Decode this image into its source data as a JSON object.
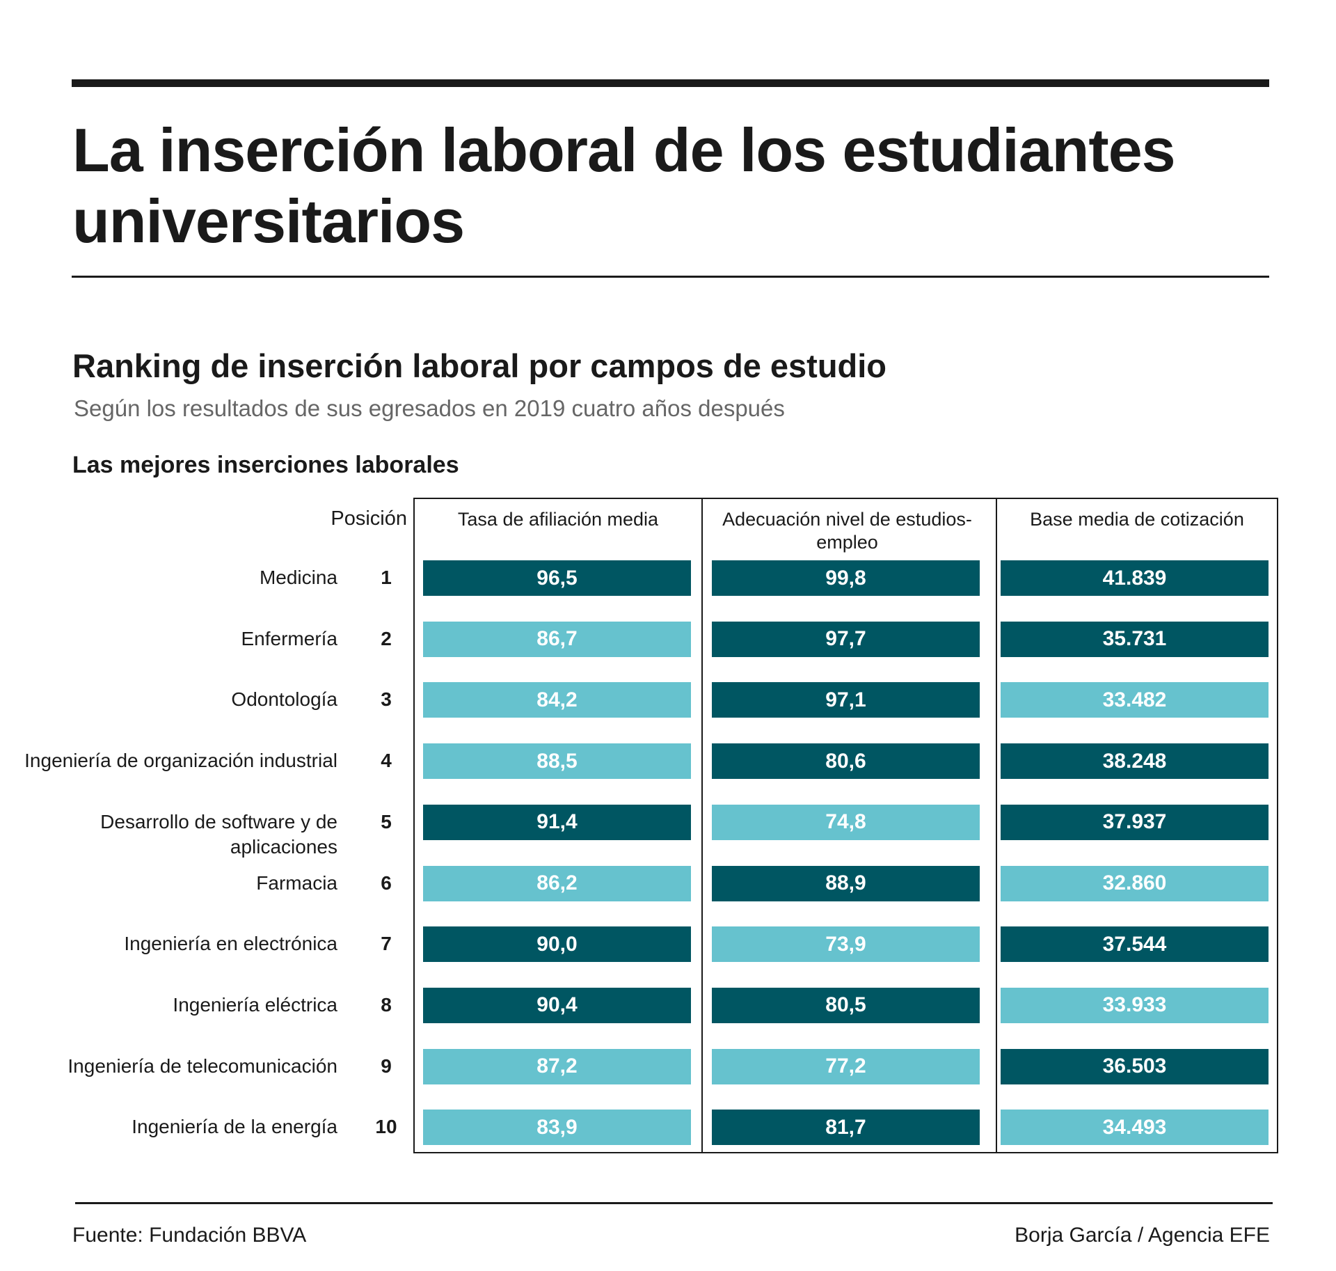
{
  "title": "La inserción laboral de los estudiantes universitarios",
  "subtitle": "Ranking de inserción laboral por campos de estudio",
  "dek": "Según los resultados de sus egresados en 2019 cuatro años después",
  "section_title": "Las mejores inserciones laborales",
  "footer": {
    "source": "Fuente: Fundación BBVA",
    "credit": "Borja García / Agencia EFE"
  },
  "colors": {
    "dark": "#005662",
    "light": "#66c2ce"
  },
  "chart_data": {
    "type": "table",
    "position_header": "Posición",
    "columns": [
      "Tasa de afiliación media",
      "Adecuación nivel de estudios-empleo",
      "Base media de cotización"
    ],
    "rows": [
      {
        "label": "Medicina",
        "position": "1",
        "values": [
          "96,5",
          "99,8",
          "41.839"
        ],
        "shade": [
          "dark",
          "dark",
          "dark"
        ]
      },
      {
        "label": "Enfermería",
        "position": "2",
        "values": [
          "86,7",
          "97,7",
          "35.731"
        ],
        "shade": [
          "light",
          "dark",
          "dark"
        ]
      },
      {
        "label": "Odontología",
        "position": "3",
        "values": [
          "84,2",
          "97,1",
          "33.482"
        ],
        "shade": [
          "light",
          "dark",
          "light"
        ]
      },
      {
        "label": "Ingeniería de organización industrial",
        "position": "4",
        "values": [
          "88,5",
          "80,6",
          "38.248"
        ],
        "shade": [
          "light",
          "dark",
          "dark"
        ]
      },
      {
        "label": "Desarrollo de software y de aplicaciones",
        "position": "5",
        "values": [
          "91,4",
          "74,8",
          "37.937"
        ],
        "shade": [
          "dark",
          "light",
          "dark"
        ]
      },
      {
        "label": "Farmacia",
        "position": "6",
        "values": [
          "86,2",
          "88,9",
          "32.860"
        ],
        "shade": [
          "light",
          "dark",
          "light"
        ]
      },
      {
        "label": "Ingeniería en electrónica",
        "position": "7",
        "values": [
          "90,0",
          "73,9",
          "37.544"
        ],
        "shade": [
          "dark",
          "light",
          "dark"
        ]
      },
      {
        "label": "Ingeniería eléctrica",
        "position": "8",
        "values": [
          "90,4",
          "80,5",
          "33.933"
        ],
        "shade": [
          "dark",
          "dark",
          "light"
        ]
      },
      {
        "label": "Ingeniería de telecomunicación",
        "position": "9",
        "values": [
          "87,2",
          "77,2",
          "36.503"
        ],
        "shade": [
          "light",
          "light",
          "dark"
        ]
      },
      {
        "label": "Ingeniería de la energía",
        "position": "10",
        "values": [
          "83,9",
          "81,7",
          "34.493"
        ],
        "shade": [
          "light",
          "dark",
          "light"
        ]
      }
    ]
  }
}
